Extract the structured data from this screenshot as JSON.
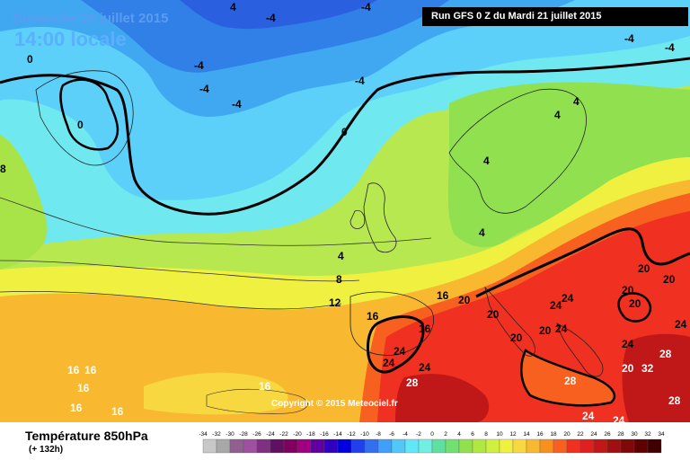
{
  "header": {
    "date": "Dimanche 26 juillet 2015",
    "time": "14:00 locale",
    "run": "Run GFS 0 Z du Mardi 21 juillet 2015"
  },
  "copyright": "Copyright © 2015 Meteociel.fr",
  "footer": {
    "title": "Température 850hPa",
    "subtitle": "(+ 132h)"
  },
  "legend": {
    "ticks": [
      "-34",
      "-32",
      "-30",
      "-28",
      "-26",
      "-24",
      "-22",
      "-20",
      "-18",
      "-16",
      "-14",
      "-12",
      "-10",
      "-8",
      "-6",
      "-4",
      "-2",
      "0",
      "2",
      "4",
      "6",
      "8",
      "10",
      "12",
      "14",
      "16",
      "18",
      "20",
      "22",
      "24",
      "26",
      "28",
      "30",
      "32",
      "34"
    ],
    "colors": [
      "#c8c8c8",
      "#a8a8a8",
      "#906090",
      "#a050a0",
      "#803080",
      "#601060",
      "#800060",
      "#a00080",
      "#6000a0",
      "#3000c0",
      "#0000e0",
      "#2040f0",
      "#3070f0",
      "#40a0f8",
      "#50c8f8",
      "#60e8f8",
      "#70f0e0",
      "#60e0a0",
      "#70e070",
      "#90e050",
      "#b0e840",
      "#d0f040",
      "#f0f040",
      "#f8d840",
      "#f8b830",
      "#f89020",
      "#f86020",
      "#f03020",
      "#e02020",
      "#c01818",
      "#a01010",
      "#800808",
      "#600000",
      "#400000"
    ]
  },
  "isotherm_labels": [
    {
      "text": "-4"
    },
    {
      "text": "4"
    },
    {
      "text": "-4"
    },
    {
      "text": "-4"
    },
    {
      "text": "-4"
    },
    {
      "text": "-4"
    },
    {
      "text": "-4"
    },
    {
      "text": "-4"
    },
    {
      "text": "-4"
    },
    {
      "text": "0"
    },
    {
      "text": "0"
    },
    {
      "text": "0"
    },
    {
      "text": "4"
    },
    {
      "text": "4"
    },
    {
      "text": "4"
    },
    {
      "text": "4"
    },
    {
      "text": "4"
    },
    {
      "text": "8"
    },
    {
      "text": "8"
    },
    {
      "text": "12"
    },
    {
      "text": "16"
    },
    {
      "text": "16"
    },
    {
      "text": "16"
    },
    {
      "text": "20"
    },
    {
      "text": "20"
    },
    {
      "text": "20"
    },
    {
      "text": "20"
    },
    {
      "text": "20"
    },
    {
      "text": "20"
    },
    {
      "text": "20"
    },
    {
      "text": "24"
    },
    {
      "text": "24"
    },
    {
      "text": "24"
    },
    {
      "text": "24"
    },
    {
      "text": "24"
    },
    {
      "text": "24"
    },
    {
      "text": "24"
    },
    {
      "text": "24"
    },
    {
      "text": "28"
    },
    {
      "text": "28"
    },
    {
      "text": "28"
    },
    {
      "text": "20"
    },
    {
      "text": "32"
    },
    {
      "text": "28"
    },
    {
      "text": "16"
    },
    {
      "text": "16"
    },
    {
      "text": "16"
    },
    {
      "text": "16"
    },
    {
      "text": "16"
    },
    {
      "text": "16"
    },
    {
      "text": "24"
    },
    {
      "text": "24"
    },
    {
      "text": "20"
    }
  ]
}
